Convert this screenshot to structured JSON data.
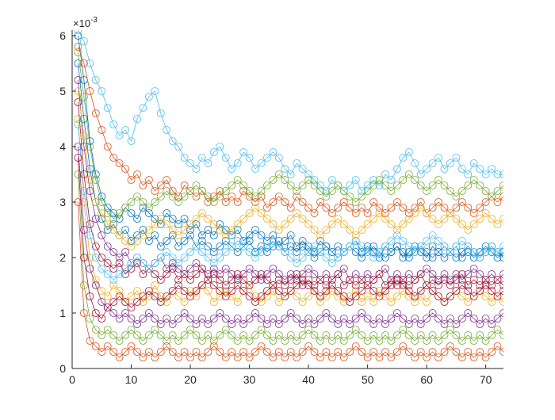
{
  "chart_data": {
    "type": "line",
    "title": "",
    "xlabel": "",
    "ylabel": "",
    "xlim": [
      0,
      73
    ],
    "ylim": [
      0,
      0.0061
    ],
    "xticks": [
      0,
      10,
      20,
      30,
      40,
      50,
      60,
      70
    ],
    "yticks": [
      0,
      1,
      2,
      3,
      4,
      5,
      6
    ],
    "y_exponent_label": "×10",
    "y_exponent_power": "-3",
    "marker": "circle",
    "grid": false,
    "legend": "none",
    "colors": [
      "#0072BD",
      "#D95319",
      "#EDB120",
      "#7E2F8E",
      "#77AC30",
      "#4DBEEE",
      "#A2142F"
    ],
    "series": [
      {
        "values": [
          0.006,
          0.0052,
          0.0041,
          0.0035,
          0.0031,
          0.0029,
          0.0028,
          0.0027,
          0.0029,
          0.0028,
          0.0027,
          0.0029,
          0.0028,
          0.0027,
          0.0026,
          0.0028,
          0.0027,
          0.0026,
          0.0027,
          0.0025,
          0.0026,
          0.0024,
          0.0025,
          0.0024,
          0.0026,
          0.0025,
          0.0024,
          0.0025,
          0.0023,
          0.0024,
          0.0025,
          0.0024,
          0.0023,
          0.0024,
          0.0022,
          0.0023,
          0.0024,
          0.0022,
          0.0023,
          0.0022,
          0.0021,
          0.0023,
          0.0022,
          0.0021,
          0.0022,
          0.0021,
          0.0022,
          0.0023,
          0.0021,
          0.0022,
          0.0021,
          0.002,
          0.0022,
          0.0021,
          0.0022,
          0.002,
          0.0021,
          0.0022,
          0.0021,
          0.002,
          0.0022,
          0.0021,
          0.002,
          0.0021,
          0.0022,
          0.002,
          0.0021,
          0.002,
          0.0021,
          0.0022,
          0.0021,
          0.002,
          0.0021
        ]
      },
      {
        "values": [
          0.0058,
          0.0055,
          0.005,
          0.0046,
          0.0043,
          0.004,
          0.0038,
          0.0037,
          0.0036,
          0.0034,
          0.0035,
          0.0033,
          0.0034,
          0.0032,
          0.0033,
          0.0034,
          0.0032,
          0.0031,
          0.0033,
          0.0032,
          0.0031,
          0.0032,
          0.003,
          0.0031,
          0.0032,
          0.003,
          0.0031,
          0.003,
          0.0032,
          0.0031,
          0.003,
          0.0031,
          0.0029,
          0.003,
          0.0031,
          0.003,
          0.0029,
          0.0031,
          0.003,
          0.0029,
          0.0028,
          0.003,
          0.0029,
          0.0028,
          0.0029,
          0.003,
          0.0029,
          0.0028,
          0.0029,
          0.0028,
          0.003,
          0.0029,
          0.0028,
          0.0029,
          0.003,
          0.0029,
          0.0028,
          0.0029,
          0.003,
          0.0028,
          0.0029,
          0.003,
          0.0029,
          0.0028,
          0.0029,
          0.003,
          0.0029,
          0.0028,
          0.0029,
          0.003,
          0.0031,
          0.003,
          0.0031
        ]
      },
      {
        "values": [
          0.0045,
          0.003,
          0.002,
          0.0016,
          0.0014,
          0.0013,
          0.0015,
          0.0014,
          0.0012,
          0.0013,
          0.0014,
          0.0012,
          0.0013,
          0.0015,
          0.0013,
          0.0012,
          0.0014,
          0.0013,
          0.0012,
          0.0014,
          0.0013,
          0.0015,
          0.0014,
          0.0012,
          0.0013,
          0.0014,
          0.0013,
          0.0012,
          0.0014,
          0.0015,
          0.0013,
          0.0012,
          0.0013,
          0.0014,
          0.0012,
          0.0013,
          0.0014,
          0.0013,
          0.0012,
          0.0013,
          0.0014,
          0.0012,
          0.0013,
          0.0014,
          0.0013,
          0.0012,
          0.0013,
          0.0014,
          0.0012,
          0.0013,
          0.0012,
          0.0014,
          0.0013,
          0.0012,
          0.0013,
          0.0014,
          0.0013,
          0.0012,
          0.0013,
          0.0012,
          0.0014,
          0.0013,
          0.0012,
          0.0013,
          0.0014,
          0.0013,
          0.0012,
          0.0013,
          0.0014,
          0.0013,
          0.0012,
          0.0013,
          0.0012
        ]
      },
      {
        "values": [
          0.0052,
          0.004,
          0.0032,
          0.0027,
          0.0024,
          0.0022,
          0.0021,
          0.002,
          0.0021,
          0.0019,
          0.002,
          0.0019,
          0.0018,
          0.0019,
          0.002,
          0.0018,
          0.0019,
          0.0018,
          0.0017,
          0.0018,
          0.0019,
          0.0018,
          0.0017,
          0.0018,
          0.0017,
          0.0018,
          0.0017,
          0.0016,
          0.0017,
          0.0018,
          0.0017,
          0.0016,
          0.0017,
          0.0018,
          0.0017,
          0.0016,
          0.0017,
          0.0016,
          0.0017,
          0.0018,
          0.0017,
          0.0016,
          0.0017,
          0.0016,
          0.0017,
          0.0018,
          0.0016,
          0.0017,
          0.0016,
          0.0017,
          0.0016,
          0.0017,
          0.0018,
          0.0016,
          0.0017,
          0.0016,
          0.0017,
          0.0016,
          0.0017,
          0.0018,
          0.0017,
          0.0016,
          0.0017,
          0.0016,
          0.0017,
          0.0016,
          0.0017,
          0.0018,
          0.0017,
          0.0016,
          0.0017,
          0.0016,
          0.0017
        ]
      },
      {
        "values": [
          0.0035,
          0.0015,
          0.0009,
          0.0007,
          0.0006,
          0.0007,
          0.0006,
          0.0005,
          0.0006,
          0.0007,
          0.0006,
          0.0005,
          0.0006,
          0.0007,
          0.0006,
          0.0005,
          0.0006,
          0.0005,
          0.0006,
          0.0007,
          0.0006,
          0.0005,
          0.0006,
          0.0005,
          0.0006,
          0.0007,
          0.0006,
          0.0005,
          0.0006,
          0.0005,
          0.0006,
          0.0007,
          0.0006,
          0.0005,
          0.0006,
          0.0005,
          0.0006,
          0.0005,
          0.0006,
          0.0007,
          0.0006,
          0.0005,
          0.0006,
          0.0005,
          0.0006,
          0.0005,
          0.0006,
          0.0007,
          0.0006,
          0.0005,
          0.0006,
          0.0005,
          0.0006,
          0.0005,
          0.0006,
          0.0007,
          0.0006,
          0.0005,
          0.0006,
          0.0005,
          0.0006,
          0.0005,
          0.0006,
          0.0007,
          0.0006,
          0.0005,
          0.0006,
          0.0005,
          0.0006,
          0.0005,
          0.0006,
          0.0007,
          0.0006
        ]
      },
      {
        "values": [
          0.0061,
          0.0059,
          0.0055,
          0.0052,
          0.005,
          0.0047,
          0.0044,
          0.0042,
          0.0043,
          0.0041,
          0.0045,
          0.0047,
          0.0049,
          0.005,
          0.0046,
          0.0043,
          0.0041,
          0.004,
          0.0038,
          0.0037,
          0.0036,
          0.0038,
          0.0037,
          0.0039,
          0.004,
          0.0038,
          0.0036,
          0.0037,
          0.0039,
          0.0038,
          0.0036,
          0.0037,
          0.0038,
          0.0039,
          0.0038,
          0.0036,
          0.0035,
          0.0037,
          0.0036,
          0.0035,
          0.0034,
          0.0033,
          0.0032,
          0.0034,
          0.0033,
          0.0032,
          0.0033,
          0.0034,
          0.0032,
          0.0033,
          0.0034,
          0.0033,
          0.0035,
          0.0034,
          0.0036,
          0.0038,
          0.0039,
          0.0037,
          0.0035,
          0.0036,
          0.0037,
          0.0038,
          0.0036,
          0.0037,
          0.0038,
          0.0036,
          0.0035,
          0.0037,
          0.0036,
          0.0035,
          0.0036,
          0.0035,
          0.0035
        ]
      },
      {
        "values": [
          0.0048,
          0.0035,
          0.0026,
          0.0022,
          0.002,
          0.0019,
          0.0018,
          0.0019,
          0.0017,
          0.0018,
          0.0019,
          0.0017,
          0.0018,
          0.0017,
          0.0016,
          0.0017,
          0.0018,
          0.0016,
          0.0017,
          0.0016,
          0.0017,
          0.0018,
          0.0016,
          0.0017,
          0.0016,
          0.0015,
          0.0016,
          0.0017,
          0.0016,
          0.0015,
          0.0016,
          0.0017,
          0.0016,
          0.0015,
          0.0016,
          0.0015,
          0.0016,
          0.0017,
          0.0015,
          0.0016,
          0.0015,
          0.0016,
          0.0015,
          0.0016,
          0.0017,
          0.0015,
          0.0016,
          0.0015,
          0.0016,
          0.0015,
          0.0016,
          0.0017,
          0.0015,
          0.0016,
          0.0015,
          0.0016,
          0.0015,
          0.0016,
          0.0017,
          0.0015,
          0.0016,
          0.0015,
          0.0016,
          0.0015,
          0.0016,
          0.0017,
          0.0015,
          0.0016,
          0.0015,
          0.0016,
          0.0015,
          0.0016,
          0.0015
        ]
      },
      {
        "values": [
          0.0055,
          0.0045,
          0.0036,
          0.003,
          0.0027,
          0.0025,
          0.0026,
          0.0024,
          0.0025,
          0.0023,
          0.0024,
          0.0025,
          0.0023,
          0.0024,
          0.0022,
          0.0023,
          0.0024,
          0.0022,
          0.0023,
          0.0024,
          0.0022,
          0.0023,
          0.0022,
          0.0021,
          0.0022,
          0.0023,
          0.0022,
          0.0021,
          0.0022,
          0.0023,
          0.0021,
          0.0022,
          0.0021,
          0.0022,
          0.0023,
          0.0021,
          0.0022,
          0.0021,
          0.0022,
          0.0021,
          0.002,
          0.0021,
          0.0022,
          0.0021,
          0.002,
          0.0021,
          0.0022,
          0.0021,
          0.002,
          0.0021,
          0.0022,
          0.0021,
          0.002,
          0.0021,
          0.0022,
          0.0021,
          0.002,
          0.0021,
          0.0022,
          0.0021,
          0.002,
          0.0021,
          0.0022,
          0.0021,
          0.002,
          0.0021,
          0.0022,
          0.0021,
          0.002,
          0.0021,
          0.0022,
          0.0021,
          0.002
        ]
      },
      {
        "values": [
          0.003,
          0.001,
          0.0005,
          0.0004,
          0.0003,
          0.0004,
          0.0003,
          0.0002,
          0.0003,
          0.0004,
          0.0003,
          0.0002,
          0.0003,
          0.0002,
          0.0003,
          0.0004,
          0.0003,
          0.0002,
          0.0003,
          0.0002,
          0.0003,
          0.0002,
          0.0003,
          0.0004,
          0.0003,
          0.0002,
          0.0003,
          0.0002,
          0.0003,
          0.0002,
          0.0003,
          0.0004,
          0.0003,
          0.0002,
          0.0003,
          0.0002,
          0.0003,
          0.0002,
          0.0003,
          0.0004,
          0.0003,
          0.0002,
          0.0003,
          0.0002,
          0.0003,
          0.0002,
          0.0003,
          0.0004,
          0.0003,
          0.0002,
          0.0003,
          0.0002,
          0.0003,
          0.0002,
          0.0003,
          0.0004,
          0.0003,
          0.0002,
          0.0003,
          0.0002,
          0.0003,
          0.0002,
          0.0003,
          0.0004,
          0.0003,
          0.0002,
          0.0003,
          0.0002,
          0.0003,
          0.0002,
          0.0003,
          0.0004,
          0.0003
        ]
      },
      {
        "values": [
          0.005,
          0.0042,
          0.0034,
          0.003,
          0.0028,
          0.0026,
          0.0025,
          0.0024,
          0.0023,
          0.0022,
          0.0023,
          0.0024,
          0.0025,
          0.0026,
          0.0027,
          0.0026,
          0.0025,
          0.0024,
          0.0025,
          0.0026,
          0.0027,
          0.0028,
          0.0027,
          0.0026,
          0.0025,
          0.0024,
          0.0025,
          0.0026,
          0.0027,
          0.0028,
          0.0029,
          0.0028,
          0.0027,
          0.0026,
          0.0025,
          0.0026,
          0.0027,
          0.0028,
          0.0027,
          0.0026,
          0.0025,
          0.0024,
          0.0025,
          0.0026,
          0.0027,
          0.0026,
          0.0025,
          0.0024,
          0.0025,
          0.0026,
          0.0027,
          0.0028,
          0.0027,
          0.0026,
          0.0025,
          0.0026,
          0.0027,
          0.0028,
          0.0029,
          0.0028,
          0.0027,
          0.0026,
          0.0027,
          0.0028,
          0.0027,
          0.0026,
          0.0025,
          0.0026,
          0.0027,
          0.0028,
          0.0027,
          0.0026,
          0.0027
        ]
      },
      {
        "values": [
          0.004,
          0.0025,
          0.0018,
          0.0015,
          0.0012,
          0.0011,
          0.001,
          0.0009,
          0.001,
          0.0009,
          0.0008,
          0.0009,
          0.001,
          0.0009,
          0.0008,
          0.0009,
          0.0008,
          0.0009,
          0.001,
          0.0009,
          0.0008,
          0.0009,
          0.0008,
          0.0009,
          0.001,
          0.0009,
          0.0008,
          0.0009,
          0.0008,
          0.0009,
          0.001,
          0.0009,
          0.0008,
          0.0009,
          0.0008,
          0.0009,
          0.001,
          0.0009,
          0.0008,
          0.0009,
          0.0008,
          0.0009,
          0.001,
          0.0009,
          0.0008,
          0.0009,
          0.0008,
          0.0009,
          0.001,
          0.0009,
          0.0008,
          0.0009,
          0.0008,
          0.0009,
          0.001,
          0.0009,
          0.0008,
          0.0009,
          0.0008,
          0.0009,
          0.001,
          0.0009,
          0.0008,
          0.0009,
          0.0008,
          0.0009,
          0.001,
          0.0009,
          0.0008,
          0.0009,
          0.0008,
          0.0009,
          0.001
        ]
      },
      {
        "values": [
          0.0057,
          0.0049,
          0.004,
          0.0034,
          0.003,
          0.0028,
          0.0027,
          0.0028,
          0.0029,
          0.003,
          0.0031,
          0.003,
          0.0029,
          0.003,
          0.0031,
          0.0032,
          0.0031,
          0.003,
          0.0031,
          0.0032,
          0.0033,
          0.0032,
          0.0031,
          0.003,
          0.0031,
          0.0032,
          0.0033,
          0.0034,
          0.0033,
          0.0032,
          0.0031,
          0.0032,
          0.0033,
          0.0034,
          0.0035,
          0.0034,
          0.0033,
          0.0032,
          0.0033,
          0.0034,
          0.0033,
          0.0032,
          0.0031,
          0.0032,
          0.0033,
          0.0032,
          0.0031,
          0.003,
          0.0031,
          0.0032,
          0.0033,
          0.0034,
          0.0033,
          0.0032,
          0.0033,
          0.0034,
          0.0035,
          0.0034,
          0.0033,
          0.0032,
          0.0033,
          0.0034,
          0.0033,
          0.0032,
          0.0031,
          0.0032,
          0.0033,
          0.0034,
          0.0033,
          0.0032,
          0.0031,
          0.0032,
          0.0033
        ]
      },
      {
        "values": [
          0.0044,
          0.0032,
          0.0024,
          0.002,
          0.0018,
          0.0017,
          0.0016,
          0.0017,
          0.0018,
          0.0019,
          0.002,
          0.0019,
          0.0018,
          0.0019,
          0.002,
          0.0021,
          0.002,
          0.0019,
          0.002,
          0.0021,
          0.0022,
          0.0021,
          0.002,
          0.0019,
          0.002,
          0.0021,
          0.0022,
          0.0023,
          0.0022,
          0.0021,
          0.002,
          0.0021,
          0.0022,
          0.0023,
          0.0022,
          0.0021,
          0.002,
          0.0019,
          0.002,
          0.0021,
          0.0022,
          0.0021,
          0.002,
          0.0019,
          0.002,
          0.0021,
          0.0022,
          0.0023,
          0.0022,
          0.0021,
          0.002,
          0.0021,
          0.0022,
          0.0023,
          0.0024,
          0.0023,
          0.0022,
          0.0021,
          0.0022,
          0.0023,
          0.0024,
          0.0023,
          0.0022,
          0.0021,
          0.0022,
          0.0023,
          0.0022,
          0.0021,
          0.002,
          0.0021,
          0.0022,
          0.0021,
          0.0022
        ]
      },
      {
        "values": [
          0.0038,
          0.002,
          0.0013,
          0.001,
          0.0009,
          0.0011,
          0.0012,
          0.0013,
          0.0012,
          0.0011,
          0.0012,
          0.0013,
          0.0014,
          0.0013,
          0.0012,
          0.0013,
          0.0014,
          0.0015,
          0.0014,
          0.0013,
          0.0014,
          0.0015,
          0.0016,
          0.0015,
          0.0014,
          0.0013,
          0.0014,
          0.0015,
          0.0014,
          0.0013,
          0.0012,
          0.0013,
          0.0014,
          0.0015,
          0.0014,
          0.0013,
          0.0014,
          0.0015,
          0.0016,
          0.0015,
          0.0014,
          0.0013,
          0.0014,
          0.0015,
          0.0014,
          0.0013,
          0.0012,
          0.0013,
          0.0014,
          0.0015,
          0.0014,
          0.0013,
          0.0014,
          0.0015,
          0.0016,
          0.0015,
          0.0014,
          0.0013,
          0.0014,
          0.0015,
          0.0014,
          0.0013,
          0.0012,
          0.0013,
          0.0014,
          0.0015,
          0.0014,
          0.0013,
          0.0014,
          0.0015,
          0.0014,
          0.0013,
          0.0014
        ]
      }
    ]
  }
}
